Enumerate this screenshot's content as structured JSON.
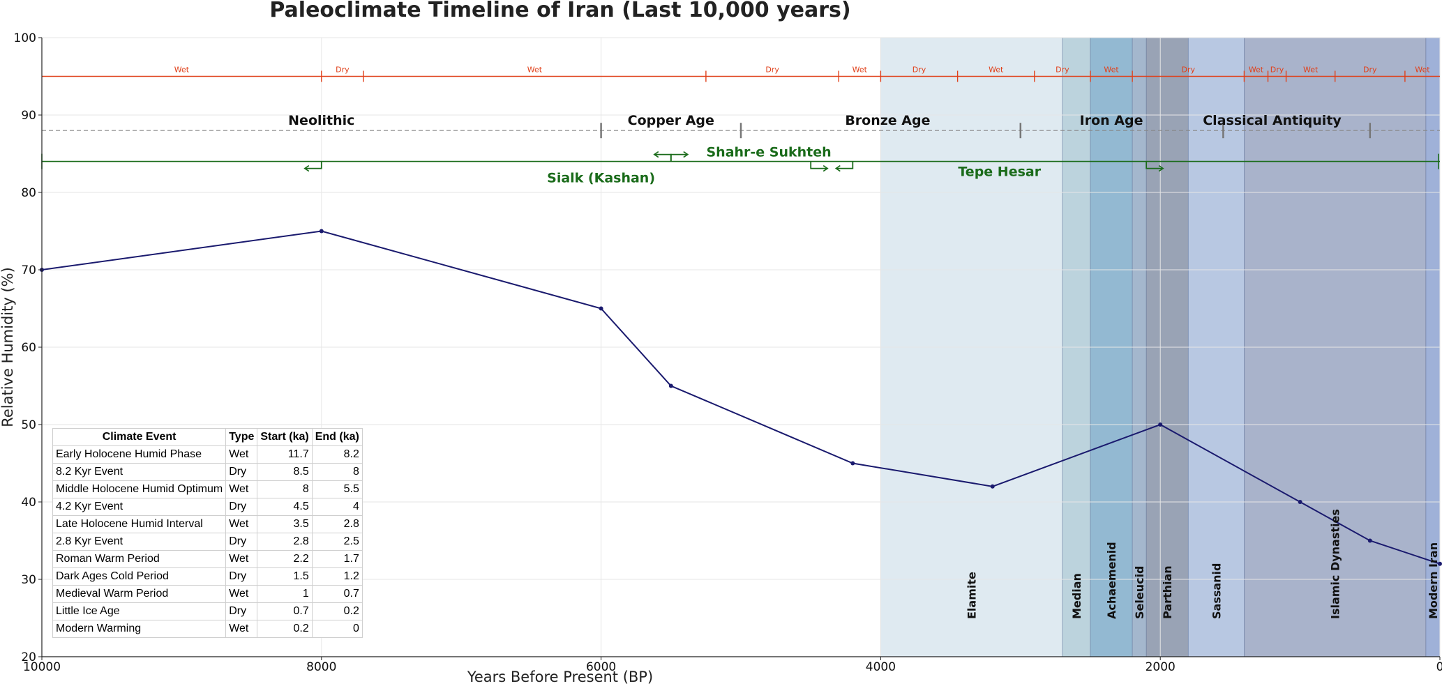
{
  "chart_data": {
    "type": "line",
    "title": "Paleoclimate Timeline of Iran (Last 10,000 years)",
    "xlabel": "Years Before Present (BP)",
    "ylabel": "Relative Humidity (%)",
    "xlim": [
      10000,
      0
    ],
    "ylim": [
      20,
      100
    ],
    "x_ticks": [
      "10000",
      "8000",
      "6000",
      "4000",
      "2000",
      "0"
    ],
    "y_ticks": [
      "20",
      "30",
      "40",
      "50",
      "60",
      "70",
      "80",
      "90",
      "100"
    ],
    "grid": true,
    "series": [
      {
        "color": "#1a1a6e",
        "x": [
          10000,
          8000,
          6000,
          5500,
          4200,
          3200,
          2000,
          1000,
          500,
          0
        ],
        "y": [
          70,
          75,
          65,
          55,
          45,
          42,
          50,
          40,
          35,
          32
        ]
      }
    ],
    "climate_phases": [
      {
        "label": "Wet",
        "start": 10000,
        "end": 8000
      },
      {
        "label": "Dry",
        "start": 8000,
        "end": 7700
      },
      {
        "label": "Wet",
        "start": 7700,
        "end": 5250
      },
      {
        "label": "Dry",
        "start": 5250,
        "end": 4300
      },
      {
        "label": "Wet",
        "start": 4300,
        "end": 4000
      },
      {
        "label": "Dry",
        "start": 4000,
        "end": 3450
      },
      {
        "label": "Wet",
        "start": 3450,
        "end": 2900
      },
      {
        "label": "Dry",
        "start": 2900,
        "end": 2500
      },
      {
        "label": "Wet",
        "start": 2500,
        "end": 2200
      },
      {
        "label": "Dry",
        "start": 2200,
        "end": 1400
      },
      {
        "label": "Wet",
        "start": 1400,
        "end": 1230
      },
      {
        "label": "Dry",
        "start": 1230,
        "end": 1100
      },
      {
        "label": "Wet",
        "start": 1100,
        "end": 750
      },
      {
        "label": "Dry",
        "start": 750,
        "end": 250
      },
      {
        "label": "Wet",
        "start": 250,
        "end": 0
      }
    ],
    "cultural_periods": [
      {
        "label": "Neolithic",
        "x": 8000
      },
      {
        "label": "Copper Age",
        "x": 5500
      },
      {
        "label": "Bronze Age",
        "x": 3950
      },
      {
        "label": "Iron Age",
        "x": 2350
      },
      {
        "label": "Classical Antiquity",
        "x": 1200
      }
    ],
    "period_ticks": [
      6000,
      5000,
      3000,
      1550,
      500
    ],
    "sites": [
      {
        "label": "Sialk (Kashan)",
        "x": 6000,
        "start": 8000,
        "end": 5500
      },
      {
        "label": "Shahr-e Sukhteh",
        "x": 4800,
        "start": 5500,
        "end": 4500
      },
      {
        "label": "Tepe Hesar",
        "x": 3150,
        "start": 4200,
        "end": 2100
      }
    ],
    "dynasties": [
      {
        "label": "Elamite",
        "start": 4000,
        "end": 2700,
        "color": "#dfeaf1"
      },
      {
        "label": "Median",
        "start": 2700,
        "end": 2500,
        "color": "#bcd3dd"
      },
      {
        "label": "Achaemenid",
        "start": 2500,
        "end": 2200,
        "color": "#93b9d2"
      },
      {
        "label": "Seleucid",
        "start": 2200,
        "end": 2100,
        "color": "#a4b7cd"
      },
      {
        "label": "Parthian",
        "start": 2100,
        "end": 1800,
        "color": "#99a3b5"
      },
      {
        "label": "Sassanid",
        "start": 1800,
        "end": 1400,
        "color": "#b8c8e2"
      },
      {
        "label": "Islamic Dynasties",
        "start": 1400,
        "end": 100,
        "color": "#a9b3cb"
      },
      {
        "label": "Modern Iran",
        "start": 100,
        "end": 0,
        "color": "#9fb1d8"
      }
    ],
    "table": {
      "headers": [
        "Climate Event",
        "Type",
        "Start (ka)",
        "End (ka)"
      ],
      "rows": [
        [
          "Early Holocene Humid Phase",
          "Wet",
          "11.7",
          "8.2"
        ],
        [
          "8.2 Kyr Event",
          "Dry",
          "8.5",
          "8"
        ],
        [
          "Middle Holocene Humid Optimum",
          "Wet",
          "8",
          "5.5"
        ],
        [
          "4.2 Kyr Event",
          "Dry",
          "4.5",
          "4"
        ],
        [
          "Late Holocene Humid Interval",
          "Wet",
          "3.5",
          "2.8"
        ],
        [
          "2.8 Kyr Event",
          "Dry",
          "2.8",
          "2.5"
        ],
        [
          "Roman Warm Period",
          "Wet",
          "2.2",
          "1.7"
        ],
        [
          "Dark Ages Cold Period",
          "Dry",
          "1.5",
          "1.2"
        ],
        [
          "Medieval Warm Period",
          "Wet",
          "1",
          "0.7"
        ],
        [
          "Little Ice Age",
          "Dry",
          "0.7",
          "0.2"
        ],
        [
          "Modern Warming",
          "Wet",
          "0.2",
          "0"
        ]
      ]
    },
    "colors": {
      "climate_line": "#e0401a",
      "period_line": "#888888",
      "site_line": "#1a6b1a",
      "data_line": "#1a1a6e"
    }
  }
}
